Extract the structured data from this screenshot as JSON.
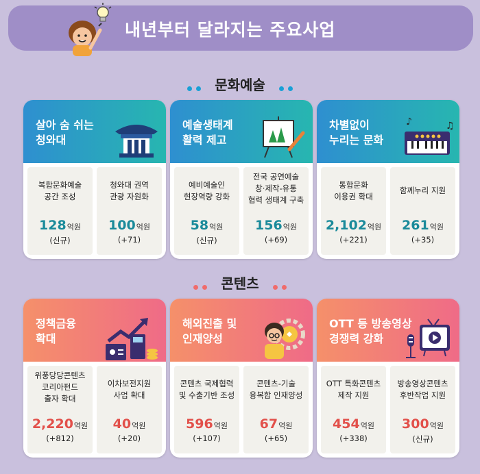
{
  "header": {
    "title": "내년부터 달라지는 주요사업"
  },
  "sections": [
    {
      "title": "문화예술",
      "dot_color": "#1aa0d6",
      "amount_color": "#1a8a9a",
      "cards": [
        {
          "title": "살아 숨 쉬는\n청와대",
          "gradient": [
            "#2e8fd0",
            "#27b6b0"
          ],
          "items": [
            {
              "name": "복합문화예술\n공간 조성",
              "amount": "128",
              "unit": "억원",
              "change": "(신규)"
            },
            {
              "name": "청와대 권역\n관광 자원화",
              "amount": "100",
              "unit": "억원",
              "change": "(+71)"
            }
          ]
        },
        {
          "title": "예술생태계\n활력 제고",
          "gradient": [
            "#2e8fd0",
            "#27b6b0"
          ],
          "items": [
            {
              "name": "예비예술인\n현장역량 강화",
              "amount": "58",
              "unit": "억원",
              "change": "(신규)"
            },
            {
              "name": "전국 공연예술\n창·제작-유통\n협력 생태계 구축",
              "amount": "156",
              "unit": "억원",
              "change": "(+69)"
            }
          ]
        },
        {
          "title": "차별없이\n누리는 문화",
          "gradient": [
            "#2e8fd0",
            "#27b6b0"
          ],
          "items": [
            {
              "name": "통합문화\n이용권 확대",
              "amount": "2,102",
              "unit": "억원",
              "change": "(+221)"
            },
            {
              "name": "함께누리 지원",
              "amount": "261",
              "unit": "억원",
              "change": "(+35)"
            }
          ]
        }
      ]
    },
    {
      "title": "콘텐츠",
      "dot_color": "#f06c6c",
      "amount_color": "#e2504a",
      "cards": [
        {
          "title": "정책금융\n확대",
          "gradient": [
            "#f5906a",
            "#ef6b87"
          ],
          "items": [
            {
              "name": "위풍당당콘텐츠\n코리아펀드\n출자 확대",
              "amount": "2,220",
              "unit": "억원",
              "change": "(+812)"
            },
            {
              "name": "이차보전지원\n사업 확대",
              "amount": "40",
              "unit": "억원",
              "change": "(+20)"
            }
          ]
        },
        {
          "title": "해외진출 및\n인재양성",
          "gradient": [
            "#f5906a",
            "#ef6b87"
          ],
          "items": [
            {
              "name": "콘텐츠 국제협력\n및 수출기반 조성",
              "amount": "596",
              "unit": "억원",
              "change": "(+107)"
            },
            {
              "name": "콘텐츠-기술\n융복합 인재양성",
              "amount": "67",
              "unit": "억원",
              "change": "(+65)"
            }
          ]
        },
        {
          "title": "OTT 등 방송영상\n경쟁력 강화",
          "gradient": [
            "#f5906a",
            "#ef6b87"
          ],
          "items": [
            {
              "name": "OTT 특화콘텐츠\n제작 지원",
              "amount": "454",
              "unit": "억원",
              "change": "(+338)"
            },
            {
              "name": "방송영상콘텐츠\n후반작업 지원",
              "amount": "300",
              "unit": "억원",
              "change": "(신규)"
            }
          ]
        }
      ]
    }
  ]
}
